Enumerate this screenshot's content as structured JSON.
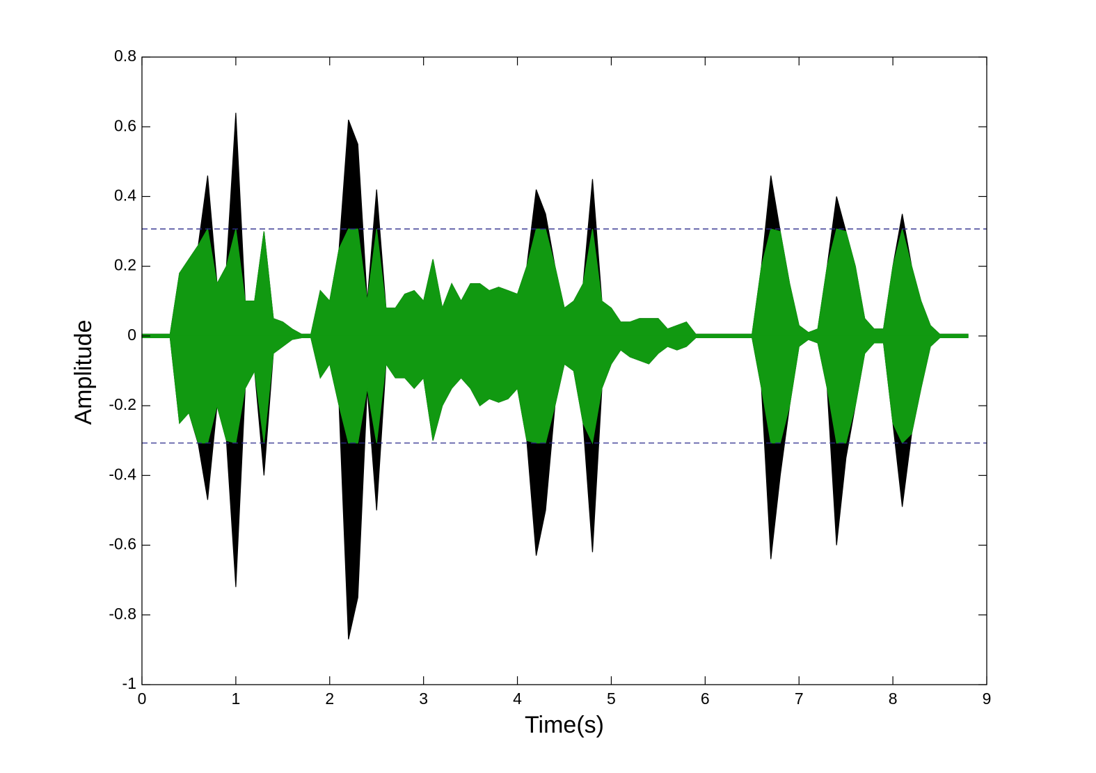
{
  "chart_data": {
    "type": "waveform",
    "xlabel": "Time(s)",
    "ylabel": "Amplitude",
    "xlim": [
      0,
      9
    ],
    "xticks": [
      0,
      1,
      2,
      3,
      4,
      5,
      6,
      7,
      8,
      9
    ],
    "ylim": [
      -1,
      0.8
    ],
    "yticks": [
      -1,
      -0.8,
      -0.6,
      -0.4,
      -0.2,
      0,
      0.2,
      0.4,
      0.6,
      0.8
    ],
    "x": [
      0,
      0.1,
      0.2,
      0.3,
      0.4,
      0.5,
      0.6,
      0.7,
      0.8,
      0.9,
      1.0,
      1.1,
      1.2,
      1.3,
      1.4,
      1.5,
      1.6,
      1.7,
      1.8,
      1.9,
      2.0,
      2.1,
      2.2,
      2.3,
      2.4,
      2.5,
      2.6,
      2.7,
      2.8,
      2.9,
      3.0,
      3.1,
      3.2,
      3.3,
      3.4,
      3.5,
      3.6,
      3.7,
      3.8,
      3.9,
      4.0,
      4.1,
      4.2,
      4.3,
      4.4,
      4.5,
      4.6,
      4.7,
      4.8,
      4.9,
      5.0,
      5.1,
      5.2,
      5.3,
      5.4,
      5.5,
      5.6,
      5.7,
      5.8,
      5.9,
      6.0,
      6.1,
      6.2,
      6.3,
      6.4,
      6.5,
      6.6,
      6.7,
      6.8,
      6.9,
      7.0,
      7.1,
      7.2,
      7.3,
      7.4,
      7.5,
      7.6,
      7.7,
      7.8,
      7.9,
      8.0,
      8.1,
      8.2,
      8.3,
      8.4,
      8.5,
      8.6,
      8.7,
      8.8
    ],
    "series": [
      {
        "color": "#000000",
        "upper": [
          0.005,
          0.005,
          0.005,
          0.005,
          0.18,
          0.22,
          0.26,
          0.46,
          0.15,
          0.2,
          0.64,
          0.1,
          0.1,
          0.3,
          0.05,
          0.04,
          0.02,
          0.005,
          0.005,
          0.13,
          0.1,
          0.25,
          0.62,
          0.55,
          0.1,
          0.42,
          0.08,
          0.08,
          0.12,
          0.13,
          0.1,
          0.22,
          0.08,
          0.15,
          0.1,
          0.15,
          0.15,
          0.13,
          0.14,
          0.13,
          0.12,
          0.2,
          0.42,
          0.35,
          0.2,
          0.08,
          0.1,
          0.15,
          0.45,
          0.1,
          0.08,
          0.04,
          0.04,
          0.05,
          0.05,
          0.05,
          0.02,
          0.03,
          0.04,
          0.005,
          0.005,
          0.005,
          0.005,
          0.005,
          0.005,
          0.005,
          0.2,
          0.46,
          0.3,
          0.15,
          0.03,
          0.01,
          0.02,
          0.2,
          0.4,
          0.3,
          0.2,
          0.05,
          0.02,
          0.02,
          0.2,
          0.35,
          0.2,
          0.1,
          0.03,
          0.005,
          0.005,
          0.005,
          0.005
        ],
        "lower": [
          -0.005,
          -0.005,
          -0.005,
          -0.005,
          -0.25,
          -0.22,
          -0.31,
          -0.47,
          -0.2,
          -0.3,
          -0.72,
          -0.15,
          -0.1,
          -0.4,
          -0.05,
          -0.03,
          -0.01,
          -0.005,
          -0.005,
          -0.12,
          -0.08,
          -0.2,
          -0.87,
          -0.75,
          -0.15,
          -0.5,
          -0.08,
          -0.12,
          -0.12,
          -0.15,
          -0.12,
          -0.3,
          -0.2,
          -0.15,
          -0.12,
          -0.15,
          -0.2,
          -0.18,
          -0.19,
          -0.18,
          -0.15,
          -0.3,
          -0.63,
          -0.5,
          -0.2,
          -0.08,
          -0.1,
          -0.25,
          -0.62,
          -0.15,
          -0.08,
          -0.04,
          -0.06,
          -0.07,
          -0.08,
          -0.05,
          -0.03,
          -0.04,
          -0.03,
          -0.005,
          -0.005,
          -0.005,
          -0.005,
          -0.005,
          -0.005,
          -0.005,
          -0.15,
          -0.64,
          -0.4,
          -0.2,
          -0.03,
          -0.01,
          -0.02,
          -0.15,
          -0.6,
          -0.35,
          -0.2,
          -0.05,
          -0.02,
          -0.02,
          -0.25,
          -0.49,
          -0.28,
          -0.15,
          -0.03,
          -0.005,
          -0.005,
          -0.005,
          -0.005
        ]
      },
      {
        "color": "#119911",
        "upper": [
          0.005,
          0.005,
          0.005,
          0.005,
          0.18,
          0.22,
          0.26,
          0.307,
          0.15,
          0.2,
          0.307,
          0.1,
          0.1,
          0.3,
          0.05,
          0.04,
          0.02,
          0.005,
          0.005,
          0.13,
          0.1,
          0.25,
          0.307,
          0.307,
          0.1,
          0.307,
          0.08,
          0.08,
          0.12,
          0.13,
          0.1,
          0.22,
          0.08,
          0.15,
          0.1,
          0.15,
          0.15,
          0.13,
          0.14,
          0.13,
          0.12,
          0.2,
          0.307,
          0.307,
          0.2,
          0.08,
          0.1,
          0.15,
          0.307,
          0.1,
          0.08,
          0.04,
          0.04,
          0.05,
          0.05,
          0.05,
          0.02,
          0.03,
          0.04,
          0.005,
          0.005,
          0.005,
          0.005,
          0.005,
          0.005,
          0.005,
          0.2,
          0.307,
          0.3,
          0.15,
          0.03,
          0.01,
          0.02,
          0.2,
          0.307,
          0.3,
          0.2,
          0.05,
          0.02,
          0.02,
          0.2,
          0.307,
          0.2,
          0.1,
          0.03,
          0.005,
          0.005,
          0.005,
          0.005
        ],
        "lower": [
          -0.005,
          -0.005,
          -0.005,
          -0.005,
          -0.25,
          -0.22,
          -0.307,
          -0.307,
          -0.2,
          -0.3,
          -0.307,
          -0.15,
          -0.1,
          -0.307,
          -0.05,
          -0.03,
          -0.01,
          -0.005,
          -0.005,
          -0.12,
          -0.08,
          -0.2,
          -0.307,
          -0.307,
          -0.15,
          -0.307,
          -0.08,
          -0.12,
          -0.12,
          -0.15,
          -0.12,
          -0.3,
          -0.2,
          -0.15,
          -0.12,
          -0.15,
          -0.2,
          -0.18,
          -0.19,
          -0.18,
          -0.15,
          -0.3,
          -0.307,
          -0.307,
          -0.2,
          -0.08,
          -0.1,
          -0.25,
          -0.307,
          -0.15,
          -0.08,
          -0.04,
          -0.06,
          -0.07,
          -0.08,
          -0.05,
          -0.03,
          -0.04,
          -0.03,
          -0.005,
          -0.005,
          -0.005,
          -0.005,
          -0.005,
          -0.005,
          -0.005,
          -0.15,
          -0.307,
          -0.307,
          -0.2,
          -0.03,
          -0.01,
          -0.02,
          -0.15,
          -0.307,
          -0.307,
          -0.2,
          -0.05,
          -0.02,
          -0.02,
          -0.25,
          -0.307,
          -0.28,
          -0.15,
          -0.03,
          -0.005,
          -0.005,
          -0.005,
          -0.005
        ]
      }
    ],
    "hlines": [
      {
        "value": 0.307,
        "color": "#2a2a8a"
      },
      {
        "value": -0.307,
        "color": "#2a2a8a"
      }
    ]
  }
}
